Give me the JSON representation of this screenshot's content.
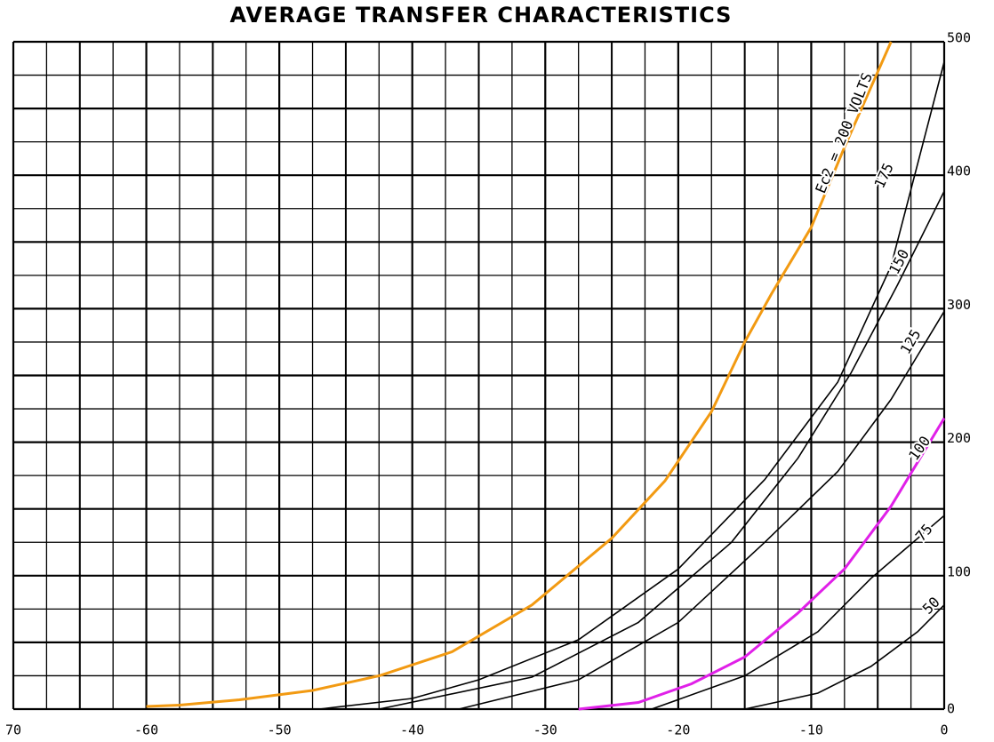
{
  "chart_data": {
    "type": "line",
    "title": "AVERAGE TRANSFER CHARACTERISTICS",
    "xlim": [
      -70,
      0
    ],
    "ylim": [
      0,
      500
    ],
    "xticks": [
      {
        "value": -70,
        "label": "70"
      },
      -60,
      -50,
      -40,
      -30,
      -20,
      -10,
      0
    ],
    "yticks": [
      0,
      100,
      200,
      300,
      400,
      500
    ],
    "grid": true,
    "series": [
      {
        "name": "Ec2 = 200 VOLTS",
        "color": "#f29a12",
        "x": [
          -60,
          -57.5,
          -53,
          -47.5,
          -42.5,
          -37,
          -31,
          -25,
          -21,
          -17.5,
          -15,
          -13,
          -10,
          -7.5,
          -4
        ],
        "values": [
          2,
          3,
          7,
          14,
          25,
          43,
          78,
          128,
          171,
          223,
          275,
          311,
          361,
          421,
          500
        ]
      },
      {
        "name": "175",
        "color": "#000000",
        "x": [
          -47,
          -40,
          -35,
          -27.5,
          -20,
          -13.5,
          -8,
          -4,
          0
        ],
        "values": [
          0,
          8,
          22,
          52,
          105,
          172,
          245,
          332,
          485
        ]
      },
      {
        "name": "150",
        "color": "#000000",
        "x": [
          -42.5,
          -31,
          -23,
          -16,
          -11,
          -7,
          -3.5,
          0
        ],
        "values": [
          0,
          24,
          65,
          125,
          188,
          252,
          318,
          388
        ]
      },
      {
        "name": "125",
        "color": "#000000",
        "x": [
          -36.5,
          -27.5,
          -20,
          -13.5,
          -8,
          -4,
          0
        ],
        "values": [
          0,
          22,
          65,
          125,
          178,
          232,
          298
        ]
      },
      {
        "name": "100",
        "color": "#e020e8",
        "x": [
          -27.5,
          -23,
          -19,
          -15,
          -11,
          -7.5,
          -4,
          0
        ],
        "values": [
          0,
          5,
          19,
          39,
          72,
          105,
          152,
          218
        ]
      },
      {
        "name": "75",
        "color": "#000000",
        "x": [
          -22,
          -15,
          -9.5,
          -5.5,
          0
        ],
        "values": [
          0,
          25,
          58,
          98,
          145
        ]
      },
      {
        "name": "50",
        "color": "#000000",
        "x": [
          -15,
          -9.5,
          -5.5,
          -2,
          0
        ],
        "values": [
          0,
          12,
          32,
          58,
          78
        ]
      }
    ]
  }
}
